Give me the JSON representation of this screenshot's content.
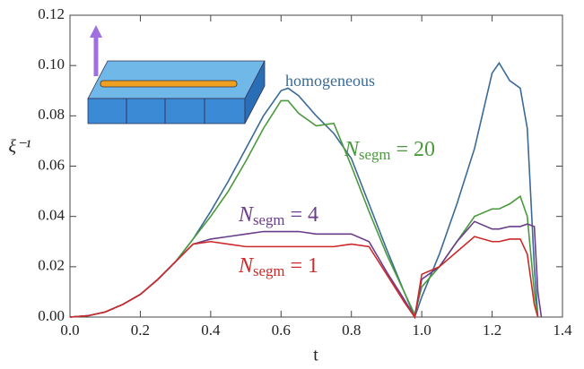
{
  "chart_data": {
    "type": "line",
    "xlabel": "t",
    "ylabel": "ξ⁻¹",
    "x": [
      0,
      0.05,
      0.1,
      0.15,
      0.2,
      0.25,
      0.3,
      0.35,
      0.4,
      0.45,
      0.5,
      0.55,
      0.6,
      0.62,
      0.65,
      0.7,
      0.75,
      0.8,
      0.85,
      0.9,
      0.95,
      0.98,
      1.0,
      1.05,
      1.1,
      1.15,
      1.2,
      1.22,
      1.25,
      1.28,
      1.3,
      1.32,
      1.33,
      1.34
    ],
    "series": [
      {
        "name": "homogeneous",
        "color": "#3a6a96",
        "values": [
          0,
          0.0005,
          0.002,
          0.005,
          0.009,
          0.015,
          0.022,
          0.031,
          0.042,
          0.054,
          0.067,
          0.08,
          0.09,
          0.091,
          0.088,
          0.08,
          0.073,
          0.063,
          0.045,
          0.027,
          0.01,
          0,
          0.008,
          0.025,
          0.045,
          0.067,
          0.097,
          0.101,
          0.094,
          0.091,
          0.075,
          0.02,
          0,
          null
        ]
      },
      {
        "name": "Nsegm = 20",
        "color": "#4a9a3c",
        "values": [
          0,
          0.0005,
          0.002,
          0.005,
          0.009,
          0.015,
          0.022,
          0.031,
          0.04,
          0.05,
          0.062,
          0.075,
          0.086,
          0.086,
          0.081,
          0.076,
          0.077,
          0.06,
          0.042,
          0.025,
          0.01,
          0.001,
          0.012,
          0.02,
          0.03,
          0.04,
          0.043,
          0.043,
          0.045,
          0.048,
          0.04,
          0.01,
          0,
          null
        ]
      },
      {
        "name": "Nsegm = 4",
        "color": "#6a3d8c",
        "values": [
          0,
          0.0005,
          0.002,
          0.005,
          0.009,
          0.015,
          0.022,
          0.029,
          0.031,
          0.032,
          0.033,
          0.034,
          0.034,
          0.034,
          0.034,
          0.033,
          0.033,
          0.033,
          0.03,
          0.018,
          0.007,
          0,
          0.015,
          0.02,
          0.03,
          0.038,
          0.035,
          0.035,
          0.036,
          0.036,
          0.037,
          0.036,
          0.01,
          0
        ]
      },
      {
        "name": "Nsegm = 1",
        "color": "#cc2a2a",
        "values": [
          0,
          0.0005,
          0.002,
          0.005,
          0.009,
          0.015,
          0.022,
          0.029,
          0.03,
          0.029,
          0.028,
          0.028,
          0.028,
          0.028,
          0.028,
          0.028,
          0.028,
          0.029,
          0.028,
          0.017,
          0.006,
          0,
          0.017,
          0.02,
          0.026,
          0.032,
          0.03,
          0.03,
          0.031,
          0.031,
          0.025,
          0.005,
          0,
          null
        ]
      }
    ],
    "xlim": [
      0,
      1.4
    ],
    "ylim": [
      0,
      0.12
    ],
    "xticks": [
      {
        "value": 0,
        "label": "0.0"
      },
      0.2,
      0.4,
      0.6,
      0.8,
      {
        "value": 1,
        "label": "1.0"
      },
      1.2,
      1.4
    ],
    "yticks": [
      {
        "value": 0,
        "label": "0.00"
      },
      0.02,
      0.04,
      0.06,
      0.08,
      {
        "value": 0.1,
        "label": "0.10"
      },
      0.12
    ]
  }
}
